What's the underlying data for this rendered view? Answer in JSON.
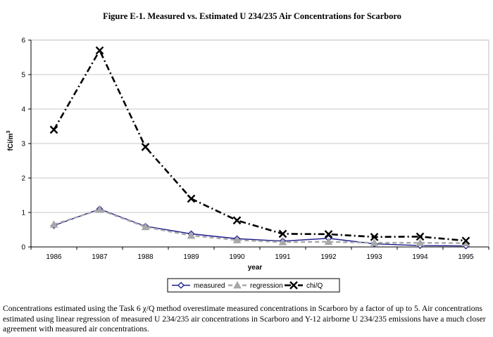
{
  "chart_data": {
    "type": "line",
    "title": "Figure E-1. Measured vs. Estimated U 234/235 Air Concentrations for Scarboro",
    "xlabel": "year",
    "ylabel": "fCi/m",
    "ylabel_sup": "3",
    "categories": [
      "1986",
      "1987",
      "1988",
      "1989",
      "1990",
      "1991",
      "1992",
      "1993",
      "1994",
      "1995"
    ],
    "ylim": [
      0,
      6
    ],
    "yticks": [
      "0",
      "1",
      "2",
      "3",
      "4",
      "5",
      "6"
    ],
    "grid": "horizontal",
    "legend_position": "bottom",
    "series": [
      {
        "name": "measured",
        "color": "#1c1c8c",
        "marker": "diamond",
        "dash": "solid",
        "values": [
          0.62,
          1.1,
          0.6,
          0.38,
          0.24,
          0.17,
          0.25,
          0.09,
          0.04,
          0.03
        ]
      },
      {
        "name": "regression",
        "color": "#a8a8a8",
        "marker": "triangle",
        "dash": "dashed",
        "values": [
          0.65,
          1.08,
          0.58,
          0.33,
          0.2,
          0.14,
          0.15,
          0.12,
          0.12,
          0.11
        ]
      },
      {
        "name": "chi/Q",
        "color": "#000000",
        "marker": "x",
        "dash": "dashdot",
        "values": [
          3.4,
          5.7,
          2.9,
          1.4,
          0.77,
          0.38,
          0.37,
          0.29,
          0.3,
          0.18
        ]
      }
    ]
  },
  "caption": "Concentrations estimated using the Task 6 χ/Q method overestimate measured concentrations in Scarboro by a factor of up to 5. Air concentrations estimated using linear regression of measured U 234/235 air concentrations in Scarboro and Y-12 airborne U 234/235 emissions have a much closer agreement with measured air concentrations."
}
